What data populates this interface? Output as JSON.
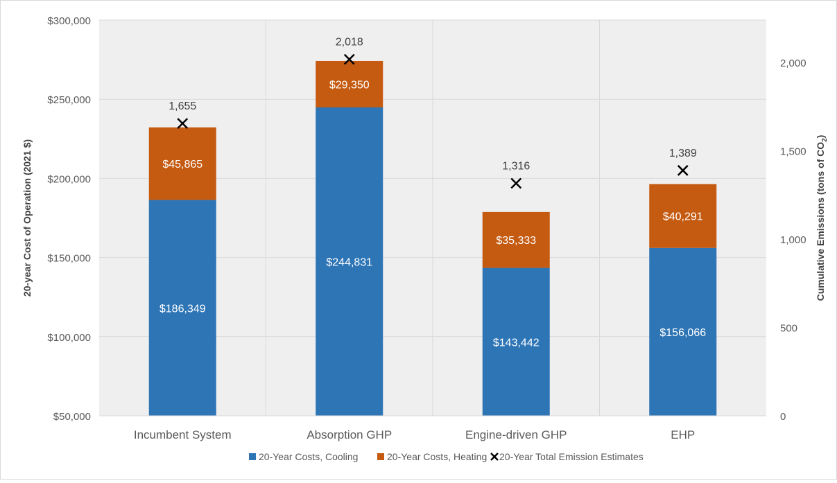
{
  "chart_data": {
    "type": "bar",
    "stacked": true,
    "categories": [
      "Incumbent System",
      "Absorption GHP",
      "Engine-driven GHP",
      "EHP"
    ],
    "series": [
      {
        "name": "20-Year Costs, Cooling",
        "values": [
          186349,
          244831,
          143442,
          156066
        ],
        "labels": [
          "$186,349",
          "$244,831",
          "$143,442",
          "$156,066"
        ],
        "color": "#2E75B6"
      },
      {
        "name": "20-Year Costs, Heating",
        "values": [
          45865,
          29350,
          35333,
          40291
        ],
        "labels": [
          "$45,865",
          "$29,350",
          "$35,333",
          "$40,291"
        ],
        "color": "#C55A11"
      }
    ],
    "emissions": {
      "name": "20-Year Total Emission Estimates",
      "values": [
        1655,
        2018,
        1316,
        1389
      ],
      "labels": [
        "1,655",
        "2,018",
        "1,316",
        "1,389"
      ],
      "marker": "x",
      "color": "#000000"
    },
    "ylabel": "20-year Cost of Operation (2021 $)",
    "y2label_prefix": "Cumulative Emissions (tons of CO",
    "y2label_sub": "2",
    "y2label_suffix": ")",
    "ylim": [
      50000,
      300000
    ],
    "y2lim": [
      0,
      2240
    ],
    "yticks": [
      50000,
      100000,
      150000,
      200000,
      250000,
      300000
    ],
    "ytick_labels": [
      "$50,000",
      "$100,000",
      "$150,000",
      "$200,000",
      "$250,000",
      "$300,000"
    ],
    "y2ticks": [
      0,
      500,
      1000,
      1500,
      2000
    ],
    "y2tick_labels": [
      "0",
      "500",
      "1,000",
      "1,500",
      "2,000"
    ],
    "grid": true,
    "legend_position": "bottom",
    "plot_background": "#EFEFEF"
  }
}
